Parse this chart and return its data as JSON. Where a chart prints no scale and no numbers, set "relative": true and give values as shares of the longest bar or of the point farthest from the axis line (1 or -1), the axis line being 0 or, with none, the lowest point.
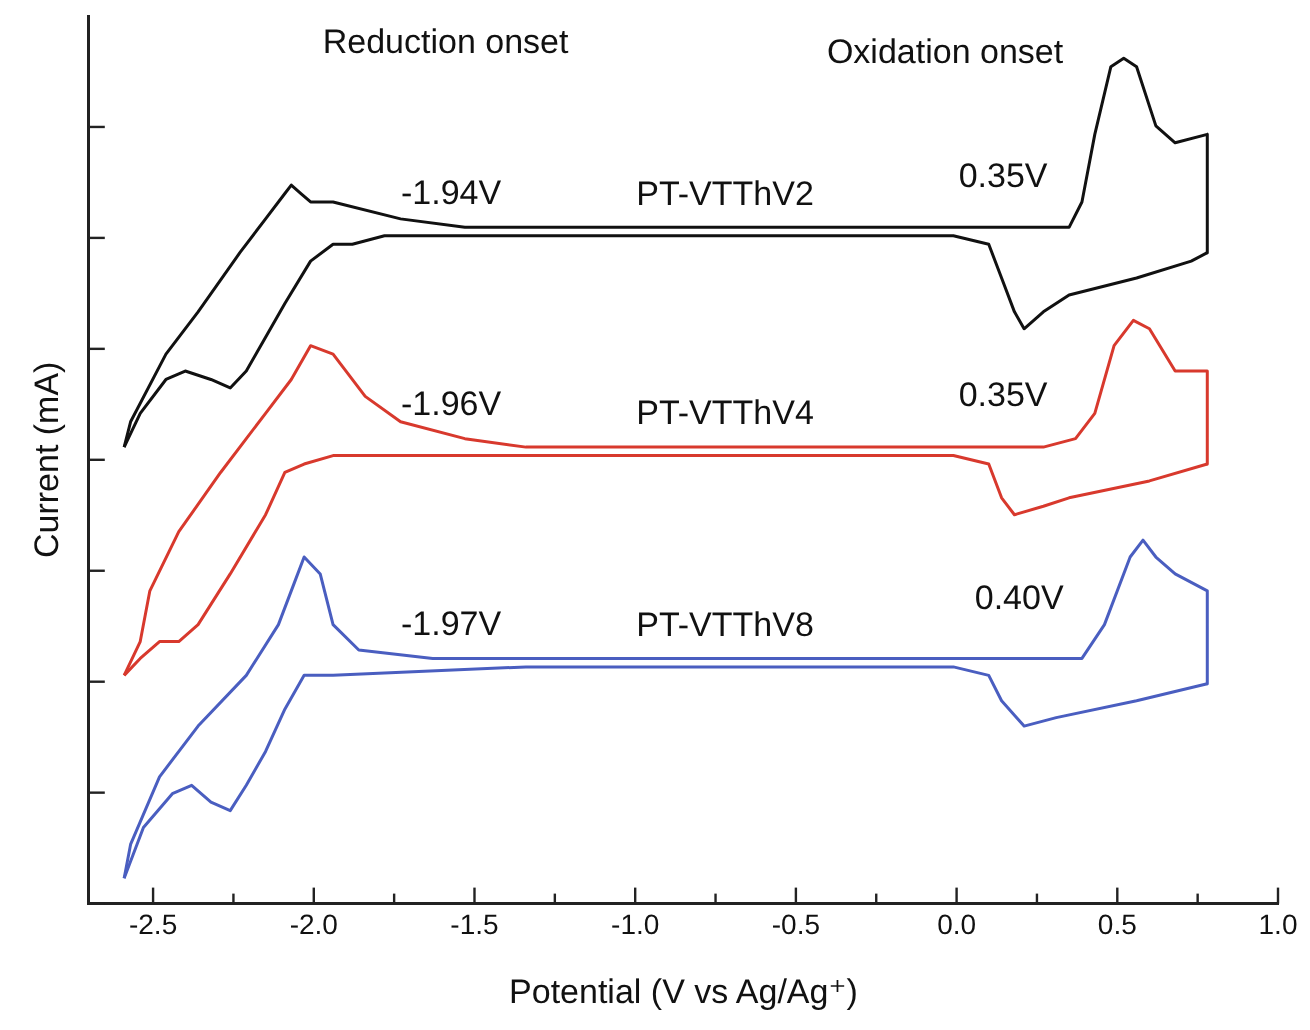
{
  "chart_data": {
    "type": "line",
    "relative": true,
    "xlabel": "Potential (V vs Ag/Ag⁺)",
    "ylabel": "Current (mA)",
    "xlim": [
      -2.7,
      1.0
    ],
    "xticks": [
      -2.5,
      {
        "value": -2.25,
        "label": null
      },
      {
        "value": -2,
        "label": "-2.0"
      },
      {
        "value": -1.75,
        "label": null
      },
      -1.5,
      {
        "value": -1.25,
        "label": null
      },
      {
        "value": -1,
        "label": "-1.0"
      },
      {
        "value": -0.75,
        "label": null
      },
      -0.5,
      {
        "value": -0.25,
        "label": null
      },
      {
        "value": 0,
        "label": "0.0"
      },
      {
        "value": 0.25,
        "label": null
      },
      0.5,
      {
        "value": 0.75,
        "label": null
      },
      {
        "value": 1,
        "label": "1.0"
      }
    ],
    "grid": false,
    "legend": false,
    "marker": "none",
    "line_style": "solid",
    "series": [
      {
        "name": "PT-VTThV2",
        "color": "#111111",
        "x": [
          -2.59,
          -2.57,
          -2.46,
          -2.36,
          -2.23,
          -2.15,
          -2.09,
          -2.07,
          -2.04,
          -2.01,
          -1.94,
          -1.73,
          -1.53,
          -1.15,
          -0.53,
          -0.01,
          0.1,
          0.27,
          0.35,
          0.39,
          0.43,
          0.48,
          0.52,
          0.56,
          0.62,
          0.68,
          0.78,
          0.78
        ],
        "values": [
          0.54,
          0.57,
          0.65,
          0.7,
          0.77,
          0.81,
          0.84,
          0.85,
          0.84,
          0.83,
          0.83,
          0.81,
          0.8,
          0.8,
          0.8,
          0.8,
          0.8,
          0.8,
          0.8,
          0.83,
          0.91,
          0.99,
          1.0,
          0.99,
          0.92,
          0.9,
          0.91,
          0.77
        ]
      },
      {
        "color": "#111111",
        "x": [
          -2.59,
          -2.54,
          -2.46,
          -2.4,
          -2.32,
          -2.26,
          -2.21,
          -2.15,
          -2.09,
          -2.01,
          -1.94,
          -1.88,
          -1.78,
          -1.46,
          -1.15,
          -0.53,
          -0.01,
          0.1,
          0.14,
          0.18,
          0.21,
          0.27,
          0.35,
          0.56,
          0.73,
          0.78
        ],
        "values": [
          0.54,
          0.58,
          0.62,
          0.63,
          0.62,
          0.61,
          0.63,
          0.67,
          0.71,
          0.76,
          0.78,
          0.78,
          0.79,
          0.79,
          0.79,
          0.79,
          0.79,
          0.78,
          0.74,
          0.7,
          0.68,
          0.7,
          0.72,
          0.74,
          0.76,
          0.77
        ]
      },
      {
        "name": "PT-VTThV4",
        "color": "#d8392d",
        "x": [
          -2.59,
          -2.54,
          -2.51,
          -2.42,
          -2.29,
          -2.15,
          -2.07,
          -2.01,
          -1.94,
          -1.84,
          -1.73,
          -1.53,
          -1.34,
          -0.53,
          -0.01,
          0.27,
          0.37,
          0.43,
          0.49,
          0.55,
          0.6,
          0.68,
          0.78,
          0.78
        ],
        "values": [
          0.27,
          0.31,
          0.37,
          0.44,
          0.51,
          0.58,
          0.62,
          0.66,
          0.65,
          0.6,
          0.57,
          0.55,
          0.54,
          0.54,
          0.54,
          0.54,
          0.55,
          0.58,
          0.66,
          0.69,
          0.68,
          0.63,
          0.63,
          0.52
        ]
      },
      {
        "color": "#d8392d",
        "x": [
          -2.59,
          -2.54,
          -2.48,
          -2.42,
          -2.36,
          -2.26,
          -2.15,
          -2.09,
          -2.03,
          -1.94,
          -1.34,
          -0.53,
          -0.01,
          0.1,
          0.14,
          0.18,
          0.27,
          0.35,
          0.6,
          0.78
        ],
        "values": [
          0.27,
          0.29,
          0.31,
          0.31,
          0.33,
          0.39,
          0.46,
          0.51,
          0.52,
          0.53,
          0.53,
          0.53,
          0.53,
          0.52,
          0.48,
          0.46,
          0.47,
          0.48,
          0.5,
          0.52
        ]
      },
      {
        "name": "PT-VTThV8",
        "color": "#4a5ec0",
        "x": [
          -2.59,
          -2.57,
          -2.48,
          -2.36,
          -2.21,
          -2.11,
          -2.06,
          -2.03,
          -1.98,
          -1.94,
          -1.86,
          -1.63,
          -1.34,
          -0.53,
          -0.01,
          0.27,
          0.39,
          0.46,
          0.54,
          0.58,
          0.62,
          0.68,
          0.78,
          0.78
        ],
        "values": [
          0.03,
          0.07,
          0.15,
          0.21,
          0.27,
          0.33,
          0.38,
          0.41,
          0.39,
          0.33,
          0.3,
          0.29,
          0.29,
          0.29,
          0.29,
          0.29,
          0.29,
          0.33,
          0.41,
          0.43,
          0.41,
          0.39,
          0.37,
          0.26
        ]
      },
      {
        "color": "#4a5ec0",
        "x": [
          -2.59,
          -2.53,
          -2.44,
          -2.38,
          -2.32,
          -2.26,
          -2.21,
          -2.15,
          -2.09,
          -2.03,
          -1.94,
          -1.34,
          -0.53,
          -0.01,
          0.1,
          0.14,
          0.21,
          0.31,
          0.56,
          0.78
        ],
        "values": [
          0.03,
          0.09,
          0.13,
          0.14,
          0.12,
          0.11,
          0.14,
          0.18,
          0.23,
          0.27,
          0.27,
          0.28,
          0.28,
          0.28,
          0.27,
          0.24,
          0.21,
          0.22,
          0.24,
          0.26
        ]
      }
    ],
    "annotations": [
      "Reduction onset",
      "Oxidation onset",
      {
        "text": "-1.94V",
        "x": -1.94,
        "y": 0.78
      },
      {
        "text": "-1.96V",
        "x": -1.94,
        "y": 0.53
      },
      {
        "text": "-1.97V",
        "x": -1.94,
        "y": 0.27
      },
      {
        "text": "0.35V",
        "x": 0.35,
        "y": 0.8
      },
      {
        "text": "0.35V",
        "x": 0.35,
        "y": 0.54
      },
      {
        "text": "0.40V",
        "x": 0.4,
        "y": 0.3
      }
    ]
  }
}
